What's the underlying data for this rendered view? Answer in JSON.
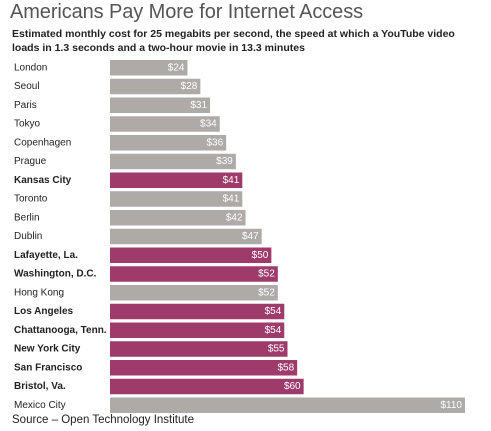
{
  "chart_data": {
    "type": "bar",
    "orientation": "horizontal",
    "title": "Americans Pay More for Internet Access",
    "subtitle": "Estimated monthly cost for 25 megabits per second, the speed at which a YouTube video loads in 1.3 seconds and a two-hour movie in 13.3 minutes",
    "source": "Source – Open Technology Institute",
    "categories": [
      "London",
      "Seoul",
      "Paris",
      "Tokyo",
      "Copenhagen",
      "Prague",
      "Kansas City",
      "Toronto",
      "Berlin",
      "Dublin",
      "Lafayette, La.",
      "Washington, D.C.",
      "Hong Kong",
      "Los Angeles",
      "Chattanooga, Tenn.",
      "New York City",
      "San Francisco",
      "Bristol, Va.",
      "Mexico City"
    ],
    "values": [
      24,
      28,
      31,
      34,
      36,
      39,
      41,
      41,
      42,
      47,
      50,
      52,
      52,
      54,
      54,
      55,
      58,
      60,
      110
    ],
    "value_labels": [
      "$24",
      "$28",
      "$31",
      "$34",
      "$36",
      "$39",
      "$41",
      "$41",
      "$42",
      "$47",
      "$50",
      "$52",
      "$52",
      "$54",
      "$54",
      "$55",
      "$58",
      "$60",
      "$110"
    ],
    "us_city": [
      false,
      false,
      false,
      false,
      false,
      false,
      true,
      false,
      false,
      false,
      true,
      true,
      false,
      true,
      true,
      true,
      true,
      true,
      false
    ],
    "xlim": [
      0,
      110
    ],
    "grid": false,
    "legend": "none",
    "colors": {
      "us": "#9e3b6b",
      "other": "#aeaaa8",
      "value_text": "#ffffff"
    }
  }
}
